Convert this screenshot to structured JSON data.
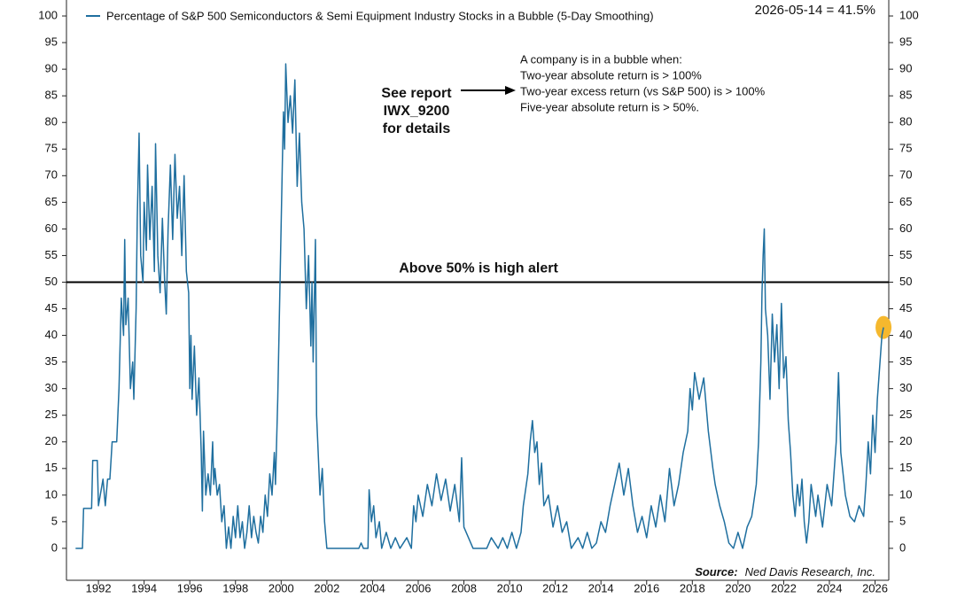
{
  "chart_data": {
    "type": "line",
    "highlight_label": "2026-05-14 = 41.5%",
    "highlight_color": "#f5b82e",
    "definition": [
      "A company is in a bubble when:",
      "Two-year absolute return is > 100%",
      "Two-year excess return (vs S&P 500) is > 100%",
      "Five-year absolute return is > 50%."
    ],
    "callout": [
      "See report",
      "IWX_9200",
      "for details"
    ],
    "reference_line": {
      "value": 50,
      "label": "Above 50% is high alert"
    },
    "source_label": "Source:",
    "source": "Ned Davis Research, Inc.",
    "xlim": [
      1990.6,
      2026.6
    ],
    "xticks": [
      1992,
      1994,
      1996,
      1998,
      2000,
      2002,
      2004,
      2006,
      2008,
      2010,
      2012,
      2014,
      2016,
      2018,
      2020,
      2022,
      2024,
      2026
    ],
    "ylim": [
      -6,
      103
    ],
    "yticks": [
      0,
      5,
      10,
      15,
      20,
      25,
      30,
      35,
      40,
      45,
      50,
      55,
      60,
      65,
      70,
      75,
      80,
      85,
      90,
      95,
      100
    ],
    "y2lim": [
      -6,
      103
    ],
    "y2ticks": [
      0,
      5,
      10,
      15,
      20,
      25,
      30,
      35,
      40,
      45,
      50,
      55,
      60,
      65,
      70,
      75,
      80,
      85,
      90,
      95,
      100
    ],
    "x": [
      1991.0,
      1991.3,
      1991.35,
      1991.7,
      1991.75,
      1991.95,
      1992.0,
      1992.2,
      1992.3,
      1992.4,
      1992.5,
      1992.6,
      1992.8,
      1992.9,
      1993.0,
      1993.1,
      1993.15,
      1993.2,
      1993.3,
      1993.4,
      1993.5,
      1993.55,
      1993.65,
      1993.7,
      1993.78,
      1993.85,
      1993.95,
      1994.0,
      1994.1,
      1994.15,
      1994.25,
      1994.35,
      1994.45,
      1994.5,
      1994.6,
      1994.7,
      1994.8,
      1994.9,
      1994.97,
      1995.05,
      1995.15,
      1995.25,
      1995.35,
      1995.45,
      1995.55,
      1995.65,
      1995.75,
      1995.85,
      1995.95,
      1996.0,
      1996.05,
      1996.1,
      1996.2,
      1996.3,
      1996.4,
      1996.5,
      1996.55,
      1996.6,
      1996.7,
      1996.8,
      1996.9,
      1997.0,
      1997.05,
      1997.1,
      1997.2,
      1997.3,
      1997.4,
      1997.5,
      1997.6,
      1997.7,
      1997.8,
      1997.9,
      1998.0,
      1998.1,
      1998.2,
      1998.3,
      1998.4,
      1998.5,
      1998.6,
      1998.7,
      1998.8,
      1998.9,
      1999.0,
      1999.1,
      1999.2,
      1999.3,
      1999.4,
      1999.5,
      1999.6,
      1999.7,
      1999.75,
      1999.85,
      1999.95,
      2000.05,
      2000.1,
      2000.15,
      2000.2,
      2000.3,
      2000.4,
      2000.5,
      2000.6,
      2000.7,
      2000.8,
      2000.9,
      2001.0,
      2001.1,
      2001.2,
      2001.3,
      2001.35,
      2001.4,
      2001.5,
      2001.55,
      2001.6,
      2001.7,
      2001.8,
      2001.9,
      2002.0,
      2003.4,
      2003.5,
      2003.6,
      2003.8,
      2003.85,
      2003.95,
      2004.05,
      2004.15,
      2004.3,
      2004.4,
      2004.6,
      2004.8,
      2005.0,
      2005.2,
      2005.5,
      2005.7,
      2005.8,
      2005.9,
      2006.0,
      2006.2,
      2006.4,
      2006.6,
      2006.8,
      2007.0,
      2007.2,
      2007.4,
      2007.6,
      2007.8,
      2007.9,
      2008.0,
      2008.2,
      2008.4,
      2009.0,
      2009.2,
      2009.5,
      2009.7,
      2009.9,
      2010.1,
      2010.3,
      2010.5,
      2010.6,
      2010.8,
      2010.9,
      2011.0,
      2011.1,
      2011.2,
      2011.3,
      2011.4,
      2011.5,
      2011.7,
      2011.9,
      2012.1,
      2012.3,
      2012.5,
      2012.7,
      2013.0,
      2013.2,
      2013.4,
      2013.6,
      2013.8,
      2014.0,
      2014.2,
      2014.4,
      2014.6,
      2014.8,
      2015.0,
      2015.2,
      2015.4,
      2015.6,
      2015.8,
      2016.0,
      2016.2,
      2016.4,
      2016.6,
      2016.8,
      2017.0,
      2017.2,
      2017.4,
      2017.6,
      2017.8,
      2017.9,
      2018.0,
      2018.1,
      2018.3,
      2018.5,
      2018.7,
      2018.9,
      2019.0,
      2019.2,
      2019.4,
      2019.6,
      2019.8,
      2020.0,
      2020.2,
      2020.4,
      2020.6,
      2020.8,
      2020.9,
      2021.0,
      2021.05,
      2021.1,
      2021.15,
      2021.2,
      2021.3,
      2021.4,
      2021.5,
      2021.6,
      2021.7,
      2021.8,
      2021.9,
      2022.0,
      2022.1,
      2022.2,
      2022.3,
      2022.4,
      2022.5,
      2022.6,
      2022.7,
      2022.8,
      2022.9,
      2023.0,
      2023.1,
      2023.2,
      2023.4,
      2023.5,
      2023.7,
      2023.9,
      2024.1,
      2024.3,
      2024.4,
      2024.5,
      2024.7,
      2024.9,
      2025.1,
      2025.3,
      2025.5,
      2025.6,
      2025.7,
      2025.8,
      2025.9,
      2026.0,
      2026.1,
      2026.2,
      2026.3,
      2026.37
    ],
    "series": [
      {
        "name": "Percentage of S&P 500 Semiconductors & Semi Equipment Industry Stocks in a Bubble (5-Day Smoothing)",
        "color": "#1f6f9f",
        "values": [
          0,
          0,
          7.5,
          7.5,
          16.5,
          16.5,
          8,
          13,
          8,
          13,
          13,
          20,
          20,
          30,
          47,
          40,
          58,
          42,
          47,
          30,
          35,
          28,
          45,
          62,
          78,
          55,
          50,
          65,
          56,
          72,
          58,
          68,
          52,
          76,
          55,
          48,
          62,
          50,
          44,
          60,
          72,
          58,
          74,
          62,
          68,
          55,
          70,
          52,
          48,
          30,
          40,
          28,
          38,
          25,
          32,
          18,
          7,
          22,
          10,
          14,
          10,
          20,
          12,
          15,
          10,
          12,
          5,
          8,
          0,
          4,
          0,
          6,
          2,
          8,
          2,
          5,
          0,
          3,
          8,
          2,
          6,
          3,
          1,
          6,
          3,
          10,
          6,
          14,
          10,
          18,
          12,
          28,
          50,
          72,
          82,
          75,
          91,
          80,
          85,
          78,
          88,
          68,
          78,
          65,
          60,
          45,
          55,
          38,
          50,
          35,
          58,
          25,
          20,
          10,
          15,
          5,
          0,
          0,
          1,
          0,
          0,
          11,
          5,
          8,
          2,
          5,
          0,
          3,
          0,
          2,
          0,
          2,
          0,
          8,
          5,
          10,
          6,
          12,
          8,
          14,
          9,
          13,
          7,
          12,
          5,
          17,
          4,
          2,
          0,
          0,
          2,
          0,
          2,
          0,
          3,
          0,
          3,
          8,
          14,
          20,
          24,
          18,
          20,
          12,
          16,
          8,
          10,
          4,
          8,
          3,
          5,
          0,
          2,
          0,
          3,
          0,
          1,
          5,
          3,
          8,
          12,
          16,
          10,
          15,
          8,
          3,
          6,
          2,
          8,
          4,
          10,
          5,
          15,
          8,
          12,
          18,
          22,
          30,
          26,
          33,
          28,
          32,
          22,
          15,
          12,
          8,
          5,
          1,
          0,
          3,
          0,
          4,
          6,
          12,
          20,
          35,
          48,
          55,
          60,
          45,
          40,
          28,
          44,
          35,
          42,
          30,
          46,
          32,
          36,
          24,
          18,
          10,
          6,
          12,
          8,
          13,
          5,
          1,
          5,
          12,
          6,
          10,
          4,
          12,
          8,
          20,
          33,
          18,
          10,
          6,
          5,
          8,
          6,
          12,
          20,
          14,
          25,
          18,
          28,
          34,
          40,
          41.5
        ]
      }
    ]
  }
}
